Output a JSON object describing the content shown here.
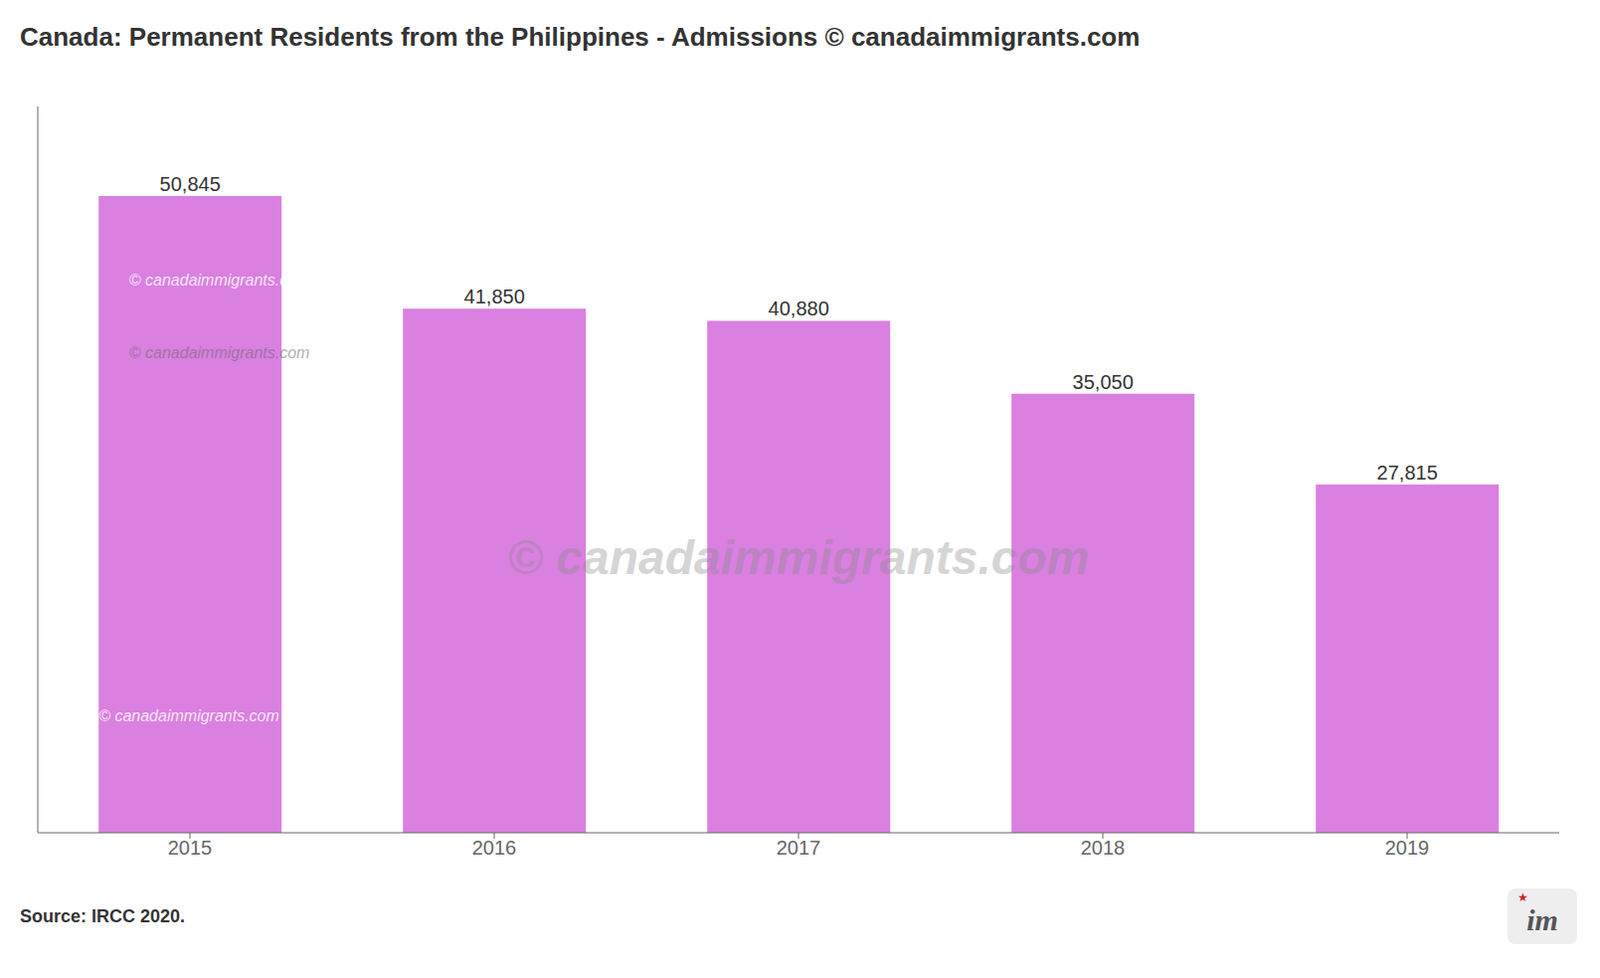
{
  "chart_data": {
    "type": "bar",
    "title": "Canada: Permanent Residents from the Philippines - Admissions © canadaimmigrants.com",
    "categories": [
      "2015",
      "2016",
      "2017",
      "2018",
      "2019"
    ],
    "values": [
      50845,
      41850,
      40880,
      35050,
      27815
    ],
    "value_labels": [
      "50,845",
      "41,850",
      "40,880",
      "35,050",
      "27,815"
    ],
    "data_labels": true,
    "color": "#da80e0",
    "ylim": [
      0,
      58000
    ],
    "tick_labels": "x",
    "annotations": [
      "Source: IRCC 2020.",
      "© canadaimmigrants.com",
      "© canadaimmigrants.com",
      "© canadaimmigrants.com",
      "© canadaimmigrants.com",
      "im",
      "★"
    ]
  }
}
